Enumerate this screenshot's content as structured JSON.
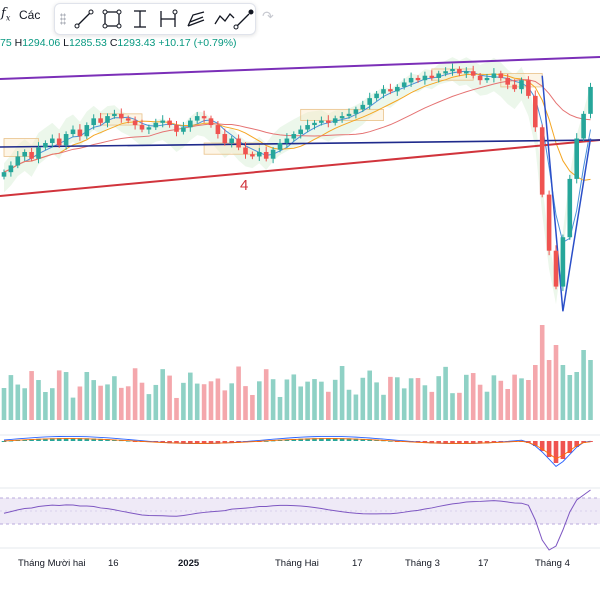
{
  "toolbar": {
    "fx_label": "f",
    "fx_sub": "x",
    "cac_label": "Các",
    "tools": [
      "trend-line-icon",
      "rectangle-icon",
      "text-icon",
      "measure-icon",
      "fib-icon",
      "path-icon",
      "brush-icon"
    ],
    "redo_icon": "redo-icon"
  },
  "ohlc": {
    "o_tail": "75",
    "h_key": "H",
    "h_val": "1294.06",
    "l_key": "L",
    "l_val": "1285.53",
    "c_key": "C",
    "c_val": "1293.43",
    "change": "+10.17 (+0.79%)"
  },
  "annotation": {
    "wave_label": "4"
  },
  "x_axis": {
    "labels": [
      "Tháng Mười hai",
      "16",
      "2025",
      "Tháng Hai",
      "17",
      "Tháng 3",
      "17",
      "Tháng 4"
    ]
  },
  "colors": {
    "up": "#26a69a",
    "down": "#ef5350",
    "vol_up": "#8fd1c5",
    "vol_down": "#f4a7ac",
    "channel_top": "#7b2fb8",
    "channel_bottom": "#d1343c",
    "navy_line": "#1f2a8c",
    "rsi": "#7e57c2"
  },
  "chart_data": {
    "type": "candlestick",
    "price_panel": {
      "visible_price_range": [
        1190,
        1305
      ],
      "last_bar": {
        "high": 1294.06,
        "low": 1285.53,
        "close": 1293.43,
        "change": 10.17,
        "change_pct": 0.79
      }
    },
    "x_labels": [
      "Tháng Mười hai",
      "16",
      "2025",
      "Tháng Hai",
      "17",
      "Tháng 3",
      "17",
      "Tháng 4"
    ],
    "closes": [
      1255,
      1258,
      1262,
      1264,
      1261,
      1266,
      1268,
      1270,
      1267,
      1272,
      1274,
      1271,
      1276,
      1279,
      1277,
      1280,
      1281,
      1279,
      1278,
      1276,
      1274,
      1275,
      1277,
      1278,
      1276,
      1273,
      1275,
      1278,
      1280,
      1279,
      1276,
      1272,
      1268,
      1270,
      1266,
      1263,
      1262,
      1264,
      1261,
      1265,
      1268,
      1270,
      1272,
      1274,
      1276,
      1277,
      1278,
      1277,
      1279,
      1280,
      1281,
      1283,
      1285,
      1288,
      1290,
      1292,
      1291,
      1293,
      1295,
      1297,
      1296,
      1298,
      1297,
      1299,
      1300,
      1301,
      1299,
      1300,
      1298,
      1296,
      1297,
      1299,
      1297,
      1294,
      1292,
      1296,
      1289,
      1275,
      1245,
      1220,
      1204,
      1226,
      1252,
      1270,
      1281,
      1293
    ],
    "series": [
      {
        "name": "Volume",
        "type": "bar"
      },
      {
        "name": "MACD",
        "type": "histogram"
      },
      {
        "name": "RSI",
        "type": "line"
      }
    ]
  }
}
